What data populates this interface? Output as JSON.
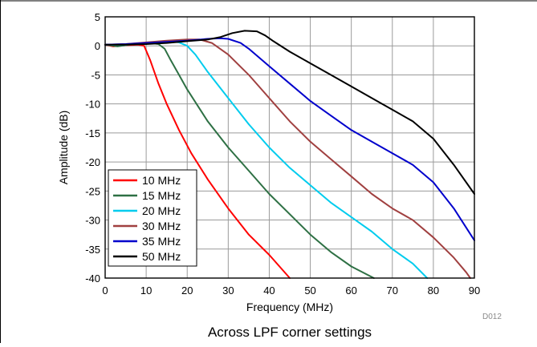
{
  "chart_data": {
    "type": "line",
    "xlabel": "Frequency (MHz)",
    "ylabel": "Amplitude (dB)",
    "caption": "Across LPF corner settings",
    "figure_id": "D012",
    "xlim": [
      0,
      90
    ],
    "ylim": [
      -40,
      5
    ],
    "xticks": [
      0,
      10,
      20,
      30,
      40,
      50,
      60,
      70,
      80,
      90
    ],
    "yticks": [
      5,
      0,
      -5,
      -10,
      -15,
      -20,
      -25,
      -30,
      -35,
      -40
    ],
    "grid": true,
    "legend_position": "bottom-left",
    "series": [
      {
        "name": "10 MHz",
        "color": "#ff0000",
        "points": [
          [
            0,
            0.2
          ],
          [
            2,
            -0.1
          ],
          [
            5,
            0.1
          ],
          [
            8,
            0.2
          ],
          [
            9.5,
            0
          ],
          [
            11,
            -2.5
          ],
          [
            13,
            -6.5
          ],
          [
            15,
            -10
          ],
          [
            18,
            -14.5
          ],
          [
            21,
            -18.5
          ],
          [
            25,
            -23
          ],
          [
            30,
            -28
          ],
          [
            35,
            -32.5
          ],
          [
            40,
            -36
          ],
          [
            45,
            -40
          ]
        ]
      },
      {
        "name": "15 MHz",
        "color": "#2e7044",
        "points": [
          [
            0,
            0.2
          ],
          [
            3,
            -0.1
          ],
          [
            7,
            0.3
          ],
          [
            11,
            0.5
          ],
          [
            13,
            0.3
          ],
          [
            14.5,
            -0.5
          ],
          [
            16,
            -2.5
          ],
          [
            18,
            -5
          ],
          [
            20,
            -7.5
          ],
          [
            25,
            -13
          ],
          [
            30,
            -17.5
          ],
          [
            35,
            -21.5
          ],
          [
            40,
            -25.5
          ],
          [
            45,
            -29
          ],
          [
            50,
            -32.5
          ],
          [
            55,
            -35.5
          ],
          [
            60,
            -38
          ],
          [
            65.5,
            -40
          ]
        ]
      },
      {
        "name": "20 MHz",
        "color": "#00ccee",
        "points": [
          [
            0,
            0.2
          ],
          [
            5,
            0.2
          ],
          [
            10,
            0.5
          ],
          [
            15,
            0.8
          ],
          [
            18,
            0.6
          ],
          [
            20,
            0
          ],
          [
            22,
            -1.5
          ],
          [
            25,
            -4.5
          ],
          [
            30,
            -9
          ],
          [
            35,
            -13.5
          ],
          [
            40,
            -17.5
          ],
          [
            45,
            -21
          ],
          [
            50,
            -24
          ],
          [
            55,
            -27
          ],
          [
            60,
            -29.5
          ],
          [
            65,
            -32
          ],
          [
            70,
            -35
          ],
          [
            75,
            -37.5
          ],
          [
            78.5,
            -40
          ]
        ]
      },
      {
        "name": "30 MHz",
        "color": "#a04040",
        "points": [
          [
            0,
            0.2
          ],
          [
            5,
            0.3
          ],
          [
            10,
            0.6
          ],
          [
            15,
            0.9
          ],
          [
            20,
            1.1
          ],
          [
            23,
            1.1
          ],
          [
            26,
            0.5
          ],
          [
            28,
            -0.5
          ],
          [
            30,
            -1.5
          ],
          [
            35,
            -5
          ],
          [
            40,
            -9
          ],
          [
            45,
            -13
          ],
          [
            50,
            -16.5
          ],
          [
            55,
            -19.5
          ],
          [
            60,
            -22.5
          ],
          [
            65,
            -25.5
          ],
          [
            70,
            -28
          ],
          [
            75,
            -30
          ],
          [
            80,
            -33
          ],
          [
            85,
            -36.5
          ],
          [
            88,
            -39
          ],
          [
            89,
            -40
          ]
        ]
      },
      {
        "name": "35 MHz",
        "color": "#0000cc",
        "points": [
          [
            0,
            0.2
          ],
          [
            5,
            0.3
          ],
          [
            10,
            0.5
          ],
          [
            15,
            0.7
          ],
          [
            20,
            0.9
          ],
          [
            25,
            1.2
          ],
          [
            28,
            1.3
          ],
          [
            30,
            1.2
          ],
          [
            33,
            0.5
          ],
          [
            35,
            -0.5
          ],
          [
            40,
            -3.5
          ],
          [
            45,
            -6.5
          ],
          [
            50,
            -9.5
          ],
          [
            55,
            -12
          ],
          [
            60,
            -14.5
          ],
          [
            65,
            -16.5
          ],
          [
            70,
            -18.5
          ],
          [
            75,
            -20.5
          ],
          [
            80,
            -23.5
          ],
          [
            85,
            -28
          ],
          [
            90,
            -33.5
          ]
        ]
      },
      {
        "name": "50 MHz",
        "color": "#000000",
        "points": [
          [
            0,
            0.2
          ],
          [
            5,
            0.2
          ],
          [
            10,
            0.3
          ],
          [
            15,
            0.5
          ],
          [
            20,
            0.8
          ],
          [
            25,
            1.1
          ],
          [
            28,
            1.5
          ],
          [
            31,
            2.2
          ],
          [
            34,
            2.6
          ],
          [
            37,
            2.5
          ],
          [
            39,
            1.8
          ],
          [
            41,
            0.8
          ],
          [
            45,
            -1
          ],
          [
            50,
            -3
          ],
          [
            55,
            -5
          ],
          [
            60,
            -7
          ],
          [
            65,
            -9
          ],
          [
            70,
            -11
          ],
          [
            75,
            -13
          ],
          [
            80,
            -16
          ],
          [
            85,
            -20.5
          ],
          [
            90,
            -25.5
          ]
        ]
      }
    ]
  }
}
